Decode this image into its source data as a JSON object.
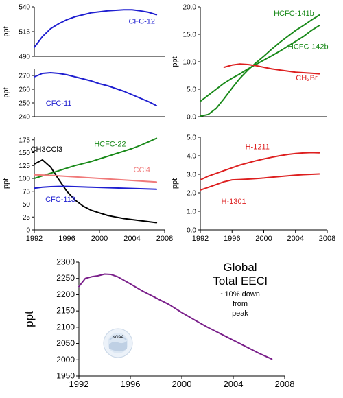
{
  "chart_data": [
    {
      "id": "cfc12",
      "type": "line",
      "ylabel": "ppt",
      "xlim": [
        1992,
        2008
      ],
      "ylim": [
        490,
        540
      ],
      "yticks": [
        490,
        515,
        540
      ],
      "show_x_axis": false,
      "series": [
        {
          "name": "CFC-12",
          "color": "#1f1fd0",
          "label_anchor": [
            2005.2,
            523
          ],
          "x": [
            1992,
            1993,
            1994,
            1995,
            1996,
            1997,
            1998,
            1999,
            2000,
            2001,
            2002,
            2003,
            2004,
            2005,
            2006,
            2007
          ],
          "y": [
            499,
            510,
            518,
            523,
            527,
            530,
            532,
            534,
            535,
            536,
            536.5,
            537,
            537,
            536,
            534.5,
            532
          ]
        }
      ]
    },
    {
      "id": "cfc11",
      "type": "line",
      "ylabel": "ppt",
      "xlim": [
        1992,
        2008
      ],
      "ylim": [
        240,
        275
      ],
      "yticks": [
        240,
        250,
        260,
        270
      ],
      "show_x_axis": false,
      "series": [
        {
          "name": "CFC-11",
          "color": "#1f1fd0",
          "label_anchor": [
            1995,
            248
          ],
          "x": [
            1992,
            1993,
            1994,
            1995,
            1996,
            1997,
            1998,
            1999,
            2000,
            2001,
            2002,
            2003,
            2004,
            2005,
            2006,
            2007
          ],
          "y": [
            269,
            271.5,
            272,
            271.5,
            270.5,
            269,
            267.5,
            266,
            264,
            262.5,
            260.5,
            258.5,
            256,
            253.5,
            251,
            248
          ]
        }
      ]
    },
    {
      "id": "hcfc-right",
      "type": "line",
      "ylabel": "ppt",
      "xlim": [
        1992,
        2008
      ],
      "ylim": [
        0,
        20
      ],
      "yticks": [
        0.0,
        5.0,
        10.0,
        15.0,
        20.0
      ],
      "ytick_decimals": 1,
      "show_x_axis": false,
      "series": [
        {
          "name": "HCFC-141b",
          "color": "#1a8a1a",
          "label_anchor": [
            2003.8,
            18.4
          ],
          "x": [
            1992,
            1993,
            1994,
            1995,
            1996,
            1997,
            1998,
            1999,
            2000,
            2001,
            2002,
            2003,
            2004,
            2005,
            2006,
            2007
          ],
          "y": [
            0.1,
            0.4,
            1.5,
            3.3,
            5.2,
            7.0,
            8.5,
            9.8,
            11.0,
            12.3,
            13.5,
            14.6,
            15.7,
            16.6,
            17.6,
            18.5
          ]
        },
        {
          "name": "HCFC-142b",
          "color": "#1a8a1a",
          "label_anchor": [
            2005.6,
            12.3
          ],
          "x": [
            1992,
            1993,
            1994,
            1995,
            1996,
            1997,
            1998,
            1999,
            2000,
            2001,
            2002,
            2003,
            2004,
            2005,
            2006,
            2007
          ],
          "y": [
            2.8,
            3.9,
            5.0,
            6.1,
            7.0,
            7.8,
            8.7,
            9.5,
            10.3,
            11.1,
            11.9,
            12.8,
            13.7,
            14.6,
            15.7,
            16.6
          ]
        },
        {
          "name": "CH₃Br",
          "color": "#dd1f1f",
          "label_anchor": [
            2005.4,
            6.6
          ],
          "x": [
            1995,
            1996,
            1997,
            1998,
            1999,
            2000,
            2001,
            2002,
            2003,
            2004,
            2005,
            2006,
            2007
          ],
          "y": [
            9.0,
            9.4,
            9.6,
            9.5,
            9.3,
            9.0,
            8.7,
            8.5,
            8.3,
            8.1,
            8.0,
            7.9,
            7.8
          ]
        }
      ]
    },
    {
      "id": "cfc-mid-left",
      "type": "line",
      "ylabel": "ppt",
      "xlim": [
        1992,
        2008
      ],
      "ylim": [
        0,
        180
      ],
      "yticks": [
        0,
        25,
        50,
        75,
        100,
        125,
        150,
        175
      ],
      "show_x_axis": true,
      "xticks": [
        1992,
        1996,
        2000,
        2004,
        2008
      ],
      "series": [
        {
          "name": "CH3CCl3",
          "color": "#000000",
          "label_anchor": [
            1993.5,
            152
          ],
          "x": [
            1992,
            1993,
            1994,
            1995,
            1996,
            1997,
            1998,
            1999,
            2000,
            2001,
            2002,
            2003,
            2004,
            2005,
            2006,
            2007
          ],
          "y": [
            128,
            136,
            122,
            98,
            75,
            58,
            46,
            38,
            33,
            28,
            25,
            22,
            20,
            18,
            16,
            14
          ]
        },
        {
          "name": "HCFC-22",
          "color": "#1a8a1a",
          "label_anchor": [
            2001.3,
            162
          ],
          "x": [
            1992,
            1993,
            1994,
            1995,
            1996,
            1997,
            1998,
            1999,
            2000,
            2001,
            2002,
            2003,
            2004,
            2005,
            2006,
            2007
          ],
          "y": [
            100,
            105,
            110,
            115,
            120,
            125,
            129,
            133,
            138,
            143,
            148,
            153,
            158,
            164,
            171,
            178
          ]
        },
        {
          "name": "CCl4",
          "color": "#f07a7a",
          "label_anchor": [
            2005.2,
            112
          ],
          "x": [
            1992,
            1993,
            1994,
            1995,
            1996,
            1997,
            1998,
            1999,
            2000,
            2001,
            2002,
            2003,
            2004,
            2005,
            2006,
            2007
          ],
          "y": [
            107,
            106.5,
            106,
            105,
            104,
            103,
            102,
            101,
            100,
            99,
            98,
            97,
            96,
            95,
            94,
            93
          ]
        },
        {
          "name": "CFC-113",
          "color": "#1f1fd0",
          "label_anchor": [
            1995.2,
            55
          ],
          "x": [
            1992,
            1993,
            1994,
            1995,
            1996,
            1997,
            1998,
            1999,
            2000,
            2001,
            2002,
            2003,
            2004,
            2005,
            2006,
            2007
          ],
          "y": [
            81,
            83,
            84,
            84.5,
            84.5,
            84,
            83.5,
            83,
            82.5,
            82,
            81.5,
            81,
            80.5,
            80,
            79.5,
            79
          ]
        }
      ]
    },
    {
      "id": "halons",
      "type": "line",
      "ylabel": "ppt",
      "xlim": [
        1992,
        2008
      ],
      "ylim": [
        0,
        5
      ],
      "yticks": [
        0.0,
        1.0,
        2.0,
        3.0,
        4.0,
        5.0
      ],
      "ytick_decimals": 1,
      "show_x_axis": true,
      "xticks": [
        1992,
        1996,
        2000,
        2004,
        2008
      ],
      "series": [
        {
          "name": "H-1211",
          "color": "#dd1f1f",
          "label_anchor": [
            1999.2,
            4.35
          ],
          "x": [
            1992,
            1993,
            1994,
            1995,
            1996,
            1997,
            1998,
            1999,
            2000,
            2001,
            2002,
            2003,
            2004,
            2005,
            2006,
            2007
          ],
          "y": [
            2.7,
            2.9,
            3.05,
            3.2,
            3.35,
            3.5,
            3.62,
            3.73,
            3.83,
            3.92,
            4.0,
            4.07,
            4.12,
            4.15,
            4.17,
            4.16
          ]
        },
        {
          "name": "H-1301",
          "color": "#dd1f1f",
          "label_anchor": [
            1996.2,
            1.4
          ],
          "x": [
            1992,
            1993,
            1994,
            1995,
            1996,
            1997,
            1998,
            1999,
            2000,
            2001,
            2002,
            2003,
            2004,
            2005,
            2006,
            2007
          ],
          "y": [
            2.15,
            2.3,
            2.45,
            2.6,
            2.7,
            2.72,
            2.74,
            2.77,
            2.8,
            2.84,
            2.88,
            2.92,
            2.95,
            2.98,
            3.0,
            3.02
          ]
        }
      ]
    },
    {
      "id": "eecl",
      "type": "line",
      "ylabel": "ppt",
      "xlim": [
        1992,
        2008
      ],
      "ylim": [
        1950,
        2300
      ],
      "yticks": [
        1950,
        2000,
        2050,
        2100,
        2150,
        2200,
        2250,
        2300
      ],
      "show_x_axis": true,
      "xticks": [
        1992,
        1996,
        2000,
        2004,
        2008
      ],
      "series": [
        {
          "name": "",
          "color": "#7a1f8a",
          "x": [
            1992,
            1992.5,
            1993,
            1993.5,
            1994,
            1994.5,
            1995,
            1996,
            1997,
            1998,
            1999,
            2000,
            2001,
            2002,
            2003,
            2004,
            2005,
            2006,
            2007
          ],
          "y": [
            2225,
            2250,
            2255,
            2258,
            2263,
            2262,
            2255,
            2233,
            2210,
            2190,
            2170,
            2145,
            2122,
            2100,
            2080,
            2060,
            2040,
            2020,
            2002
          ]
        }
      ]
    }
  ],
  "annotation": {
    "title_line1": "Global",
    "title_line2": "Total EECl",
    "note_line1": "~10% down",
    "note_line2": "from",
    "note_line3": "peak",
    "logo": "noaa-emblem-icon",
    "logo_text": "NOAA"
  }
}
